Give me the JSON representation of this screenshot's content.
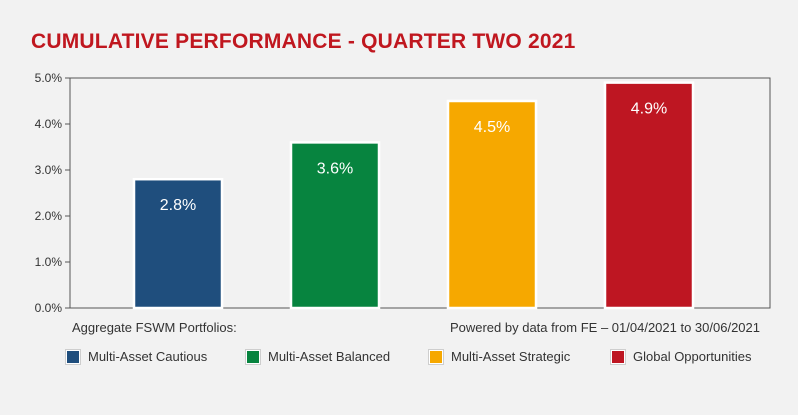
{
  "chart_data": {
    "type": "bar",
    "title": "CUMULATIVE PERFORMANCE - QUARTER TWO 2021",
    "categories": [
      "Multi-Asset Cautious",
      "Multi-Asset Balanced",
      "Multi-Asset Strategic",
      "Global Opportunities"
    ],
    "values": [
      2.8,
      3.6,
      4.5,
      4.9
    ],
    "data_labels": [
      "2.8%",
      "3.6%",
      "4.5%",
      "4.9%"
    ],
    "colors": [
      "#1f4e7d",
      "#07843f",
      "#f6a800",
      "#be1622"
    ],
    "ylim": [
      0,
      5
    ],
    "yticks": [
      0,
      1,
      2,
      3,
      4,
      5
    ],
    "ytick_labels": [
      "0.0%",
      "1.0%",
      "2.0%",
      "3.0%",
      "4.0%",
      "5.0%"
    ],
    "grid": false,
    "legend_position": "bottom"
  },
  "notes": {
    "left": "Aggregate FSWM Portfolios:",
    "right": "Powered by data from FE – 01/04/2021 to 30/06/2021"
  },
  "legend": [
    {
      "label": "Multi-Asset Cautious",
      "color": "#1f4e7d"
    },
    {
      "label": "Multi-Asset Balanced",
      "color": "#07843f"
    },
    {
      "label": "Multi-Asset Strategic",
      "color": "#f6a800"
    },
    {
      "label": "Global Opportunities",
      "color": "#be1622"
    }
  ]
}
